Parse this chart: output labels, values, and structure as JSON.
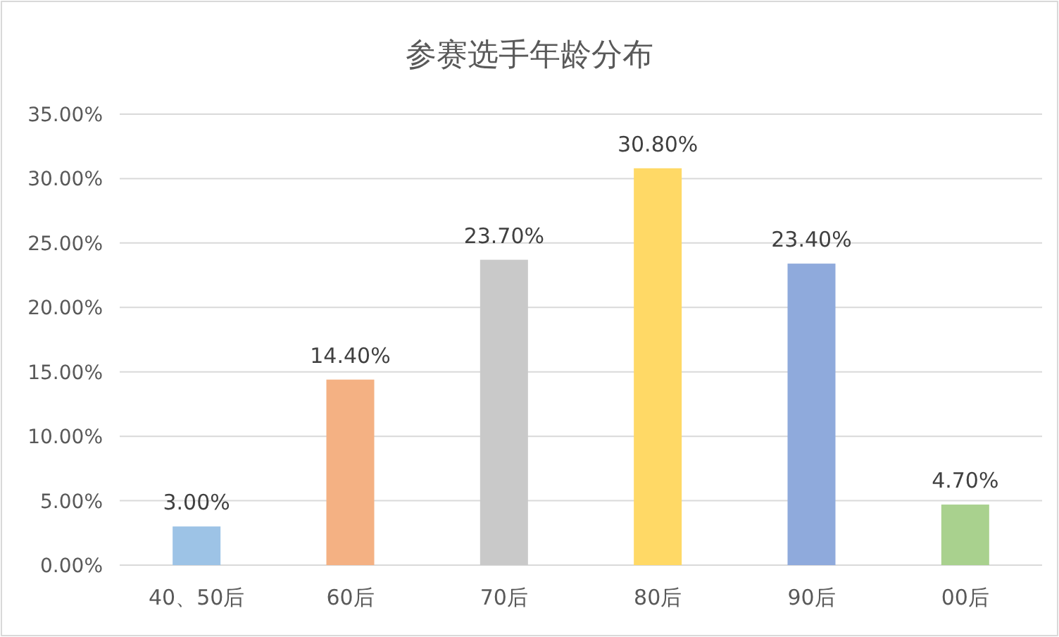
{
  "chart_data": {
    "type": "bar",
    "title": "参赛选手年龄分布",
    "categories": [
      "40、50后",
      "60后",
      "70后",
      "80后",
      "90后",
      "00后"
    ],
    "values": [
      3.0,
      14.4,
      23.7,
      30.8,
      23.4,
      4.7
    ],
    "colors": [
      "#9dc3e6",
      "#f4b183",
      "#c9c9c9",
      "#ffd966",
      "#8faadc",
      "#a9d18e"
    ],
    "value_labels": [
      "3.00%",
      "14.40%",
      "23.70%",
      "30.80%",
      "23.40%",
      "4.70%"
    ],
    "ylim": [
      0,
      35
    ],
    "yticks": [
      {
        "value": 0,
        "label": "0.00%"
      },
      {
        "value": 5,
        "label": "5.00%"
      },
      {
        "value": 10,
        "label": "10.00%"
      },
      {
        "value": 15,
        "label": "15.00%"
      },
      {
        "value": 20,
        "label": "20.00%"
      },
      {
        "value": 25,
        "label": "25.00%"
      },
      {
        "value": 30,
        "label": "30.00%"
      },
      {
        "value": 35,
        "label": "35.00%"
      }
    ],
    "grid": "y"
  }
}
